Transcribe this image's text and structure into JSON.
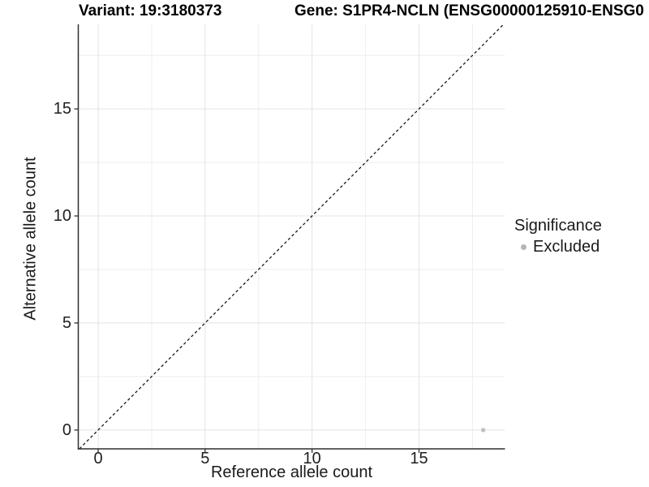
{
  "header": {
    "variant_title": "Variant: 19:3180373",
    "gene_title": "Gene: S1PR4-NCLN (ENSG00000125910-ENSG0"
  },
  "axes": {
    "x": {
      "label": "Reference allele count",
      "tick_labels": [
        "0",
        "5",
        "10",
        "15"
      ]
    },
    "y": {
      "label": "Alternative allele count",
      "tick_labels": [
        "0",
        "5",
        "10",
        "15"
      ]
    }
  },
  "legend": {
    "title": "Significance",
    "items": [
      {
        "label": "Excluded",
        "color": "#b5b5b5"
      }
    ]
  },
  "chart_data": {
    "type": "scatter",
    "title_left": "Variant: 19:3180373",
    "title_right": "Gene: S1PR4-NCLN (ENSG00000125910-ENSG0",
    "xlabel": "Reference allele count",
    "ylabel": "Alternative allele count",
    "xlim": [
      -0.93,
      19.02
    ],
    "ylim": [
      -0.88,
      18.95
    ],
    "x_major_ticks": [
      0,
      5,
      10,
      15
    ],
    "y_major_ticks": [
      0,
      5,
      10,
      15
    ],
    "x_minor_ticks": [
      2.5,
      7.5,
      12.5,
      17.5
    ],
    "y_minor_ticks": [
      2.5,
      7.5,
      12.5,
      17.5
    ],
    "grid": true,
    "identity_line": {
      "equation": "y=x",
      "style": "dashed",
      "color": "#1a1a1a"
    },
    "series": [
      {
        "name": "Excluded",
        "color": "#c0c0c0",
        "points": [
          {
            "x": 18,
            "y": 0
          }
        ]
      }
    ],
    "legend": {
      "title": "Significance",
      "position": "right"
    },
    "colors": {
      "axis_line": "#2f2f2f",
      "grid_major": "#e3e3e3",
      "grid_minor": "#eeeeee",
      "point": "#c0c0c0"
    }
  }
}
